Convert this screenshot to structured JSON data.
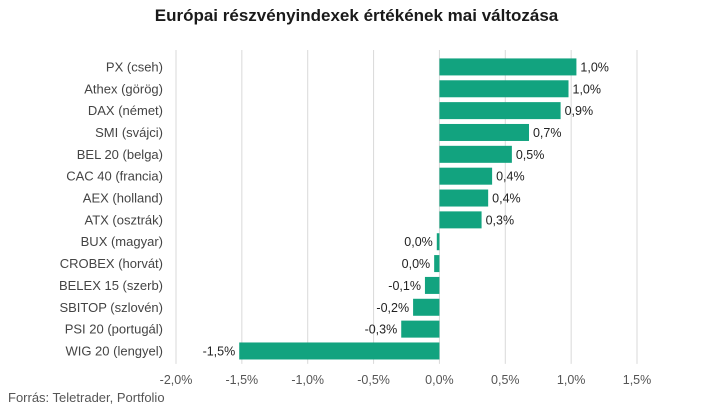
{
  "chart_data": {
    "type": "bar",
    "orientation": "horizontal",
    "title": "Európai részvényindexek értékének mai változása",
    "source": "Forrás: Teletrader, Portfolio",
    "bar_color": "#12a37f",
    "grid": true,
    "xlim": [
      -2.0,
      1.5
    ],
    "xticks": [
      "-2,0%",
      "-1,5%",
      "-1,0%",
      "-0,5%",
      "0,0%",
      "0,5%",
      "1,0%",
      "1,5%"
    ],
    "xtick_values": [
      -2.0,
      -1.5,
      -1.0,
      -0.5,
      0.0,
      0.5,
      1.0,
      1.5
    ],
    "categories": [
      "PX (cseh)",
      "Athex (görög)",
      "DAX (német)",
      "SMI (svájci)",
      "BEL 20 (belga)",
      "CAC 40 (francia)",
      "AEX (holland)",
      "ATX (osztrák)",
      "BUX (magyar)",
      "CROBEX (horvát)",
      "BELEX 15 (szerb)",
      "SBITOP (szlovén)",
      "PSI 20 (portugál)",
      "WIG 20 (lengyel)"
    ],
    "values": [
      1.04,
      0.98,
      0.92,
      0.68,
      0.55,
      0.4,
      0.37,
      0.32,
      -0.02,
      -0.04,
      -0.11,
      -0.2,
      -0.29,
      -1.52
    ],
    "value_labels": [
      "1,0%",
      "1,0%",
      "0,9%",
      "0,7%",
      "0,5%",
      "0,4%",
      "0,4%",
      "0,3%",
      "0,0%",
      "0,0%",
      "-0,1%",
      "-0,2%",
      "-0,3%",
      "-1,5%"
    ]
  }
}
